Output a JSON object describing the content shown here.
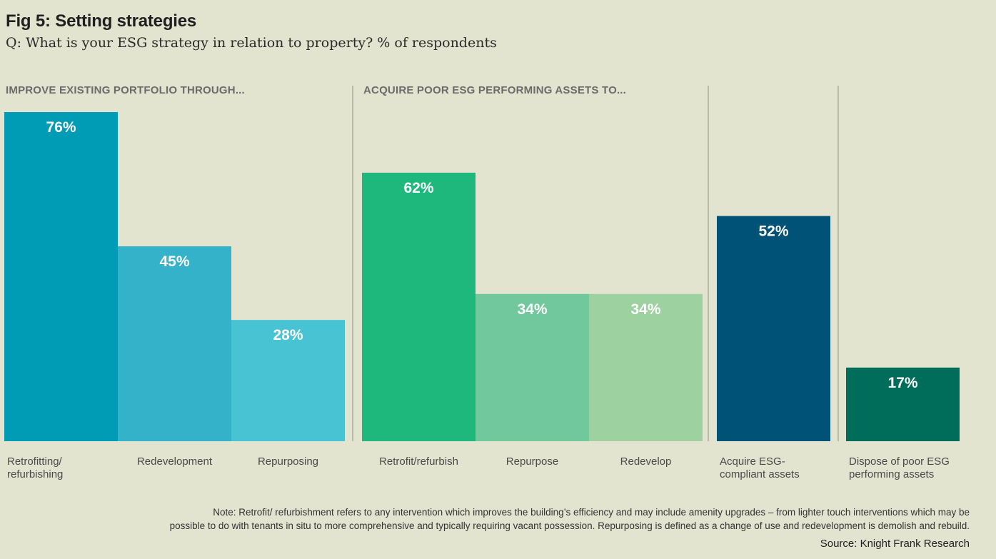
{
  "chart_data": {
    "type": "bar",
    "title": "Fig 5: Setting strategies",
    "subtitle": "Q: What is your ESG strategy in relation to property? % of respondents",
    "ylim": [
      0,
      76
    ],
    "value_suffix": "%",
    "groups": [
      {
        "title": "IMPROVE EXISTING PORTFOLIO THROUGH...",
        "bars": [
          {
            "label": [
              "Retrofitting/",
              "refurbishing"
            ],
            "value": 76,
            "value_label": "76%",
            "color": "#009bb5"
          },
          {
            "label": [
              "Redevelopment"
            ],
            "value": 45,
            "value_label": "45%",
            "color": "#33b2c9"
          },
          {
            "label": [
              "Repurposing"
            ],
            "value": 28,
            "value_label": "28%",
            "color": "#48c3d3"
          }
        ]
      },
      {
        "title": "ACQUIRE POOR ESG PERFORMING ASSETS TO...",
        "bars": [
          {
            "label": [
              "Retrofit/refurbish"
            ],
            "value": 62,
            "value_label": "62%",
            "color": "#1eb87c"
          },
          {
            "label": [
              "Repurpose"
            ],
            "value": 34,
            "value_label": "34%",
            "color": "#72c89d"
          },
          {
            "label": [
              "Redevelop"
            ],
            "value": 34,
            "value_label": "34%",
            "color": "#9dd19f"
          }
        ]
      },
      {
        "title": "",
        "bars": [
          {
            "label": [
              "Acquire ESG-",
              "compliant assets"
            ],
            "value": 52,
            "value_label": "52%",
            "color": "#005377"
          }
        ]
      },
      {
        "title": "",
        "bars": [
          {
            "label": [
              "Dispose of poor ESG",
              "performing assets"
            ],
            "value": 17,
            "value_label": "17%",
            "color": "#006d5b"
          }
        ]
      }
    ]
  },
  "note": {
    "line1": "Note: Retrofit/ refurbishment refers to any intervention which improves the building’s efficiency and may include amenity upgrades – from lighter touch interventions which may be",
    "line2": "possible to do with tenants in situ to more comprehensive and typically requiring vacant possession. Repurposing is defined as a change of use and redevelopment is demolish and rebuild."
  },
  "source": "Source: Knight Frank Research"
}
